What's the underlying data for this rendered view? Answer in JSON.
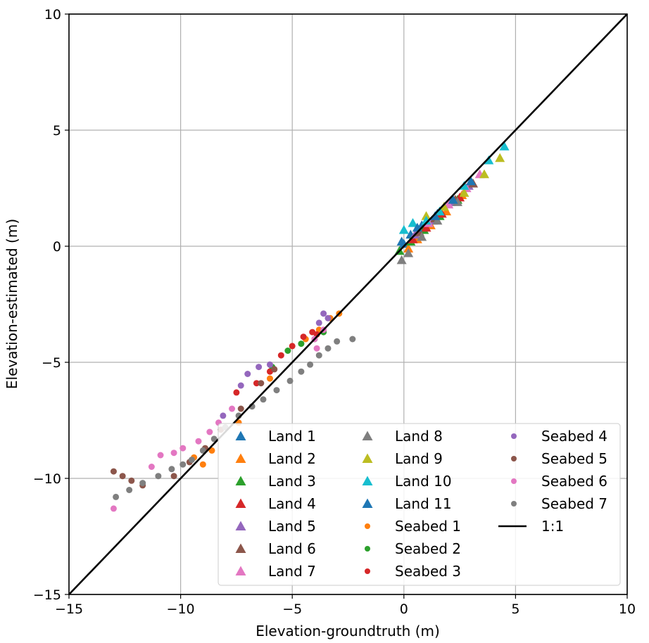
{
  "chart_data": {
    "type": "scatter",
    "title": "",
    "xlabel": "Elevation-groundtruth (m)",
    "ylabel": "Elevation-estimated (m)",
    "xlim": [
      -15,
      10
    ],
    "ylim": [
      -15,
      10
    ],
    "x_ticks": [
      -15,
      -10,
      -5,
      0,
      5,
      10
    ],
    "y_ticks": [
      -15,
      -10,
      -5,
      0,
      5,
      10
    ],
    "x_tick_labels": [
      "−15",
      "−10",
      "−5",
      "0",
      "5",
      "10"
    ],
    "y_tick_labels": [
      "−15",
      "−10",
      "−5",
      "0",
      "5",
      "10"
    ],
    "grid": true,
    "legend_placement": "lower-right",
    "reference_line": {
      "label": "1:1",
      "x": [
        -15,
        10
      ],
      "y": [
        -15,
        10
      ],
      "color": "#000000"
    },
    "series": [
      {
        "name": "Land 1",
        "marker": "triangle",
        "color": "#1f77b4",
        "points": [
          [
            0.0,
            0.1
          ],
          [
            0.3,
            0.5
          ],
          [
            0.8,
            0.9
          ],
          [
            1.5,
            1.4
          ],
          [
            2.2,
            2.0
          ],
          [
            3.0,
            2.7
          ]
        ]
      },
      {
        "name": "Land 2",
        "marker": "triangle",
        "color": "#ff7f0e",
        "points": [
          [
            0.2,
            -0.1
          ],
          [
            0.6,
            0.3
          ],
          [
            1.2,
            0.9
          ],
          [
            1.9,
            1.5
          ],
          [
            2.6,
            2.2
          ]
        ]
      },
      {
        "name": "Land 3",
        "marker": "triangle",
        "color": "#2ca02c",
        "points": [
          [
            -0.2,
            -0.2
          ],
          [
            0.3,
            0.2
          ],
          [
            0.9,
            0.7
          ],
          [
            1.6,
            1.3
          ],
          [
            2.4,
            2.0
          ]
        ]
      },
      {
        "name": "Land 4",
        "marker": "triangle",
        "color": "#d62728",
        "points": [
          [
            0.4,
            0.3
          ],
          [
            1.0,
            0.8
          ],
          [
            1.7,
            1.4
          ],
          [
            2.5,
            2.1
          ]
        ]
      },
      {
        "name": "Land 5",
        "marker": "triangle",
        "color": "#9467bd",
        "points": [
          [
            0.5,
            0.5
          ],
          [
            1.3,
            1.1
          ],
          [
            2.1,
            1.9
          ],
          [
            2.9,
            2.6
          ]
        ]
      },
      {
        "name": "Land 6",
        "marker": "triangle",
        "color": "#8c564b",
        "points": [
          [
            0.7,
            0.6
          ],
          [
            1.4,
            1.2
          ],
          [
            2.3,
            2.0
          ],
          [
            3.1,
            2.7
          ]
        ]
      },
      {
        "name": "Land 7",
        "marker": "triangle",
        "color": "#e377c2",
        "points": [
          [
            1.1,
            1.0
          ],
          [
            2.0,
            1.8
          ],
          [
            2.8,
            2.5
          ],
          [
            3.4,
            3.1
          ]
        ]
      },
      {
        "name": "Land 8",
        "marker": "triangle",
        "color": "#7f7f7f",
        "points": [
          [
            -0.1,
            -0.6
          ],
          [
            0.2,
            -0.3
          ],
          [
            0.8,
            0.4
          ],
          [
            1.5,
            1.1
          ],
          [
            2.4,
            1.9
          ]
        ]
      },
      {
        "name": "Land 9",
        "marker": "triangle",
        "color": "#bcbd22",
        "points": [
          [
            1.0,
            1.3
          ],
          [
            1.8,
            1.7
          ],
          [
            2.7,
            2.3
          ],
          [
            3.6,
            3.1
          ],
          [
            4.3,
            3.8
          ]
        ]
      },
      {
        "name": "Land 10",
        "marker": "triangle",
        "color": "#17becf",
        "points": [
          [
            0.0,
            0.7
          ],
          [
            0.4,
            1.0
          ],
          [
            1.0,
            1.1
          ],
          [
            1.6,
            1.5
          ],
          [
            2.7,
            2.6
          ],
          [
            3.8,
            3.7
          ],
          [
            4.5,
            4.3
          ]
        ]
      },
      {
        "name": "Land 11",
        "marker": "triangle",
        "color": "#1f77b4",
        "points": [
          [
            -0.1,
            0.2
          ],
          [
            0.6,
            0.8
          ],
          [
            1.4,
            1.3
          ],
          [
            2.2,
            2.0
          ],
          [
            3.0,
            2.8
          ]
        ]
      },
      {
        "name": "Seabed 1",
        "marker": "circle",
        "color": "#ff7f0e",
        "points": [
          [
            -9.4,
            -9.1
          ],
          [
            -9.0,
            -9.4
          ],
          [
            -8.6,
            -8.8
          ],
          [
            -7.4,
            -7.6
          ],
          [
            -6.0,
            -5.7
          ],
          [
            -4.4,
            -4.0
          ],
          [
            -3.8,
            -3.6
          ],
          [
            -3.3,
            -3.1
          ],
          [
            -2.9,
            -2.9
          ]
        ]
      },
      {
        "name": "Seabed 2",
        "marker": "circle",
        "color": "#2ca02c",
        "points": [
          [
            -5.9,
            -5.2
          ],
          [
            -5.2,
            -4.5
          ],
          [
            -4.6,
            -4.2
          ],
          [
            -4.0,
            -4.0
          ],
          [
            -3.6,
            -3.7
          ]
        ]
      },
      {
        "name": "Seabed 3",
        "marker": "circle",
        "color": "#d62728",
        "points": [
          [
            -7.5,
            -6.3
          ],
          [
            -6.6,
            -5.9
          ],
          [
            -6.0,
            -5.4
          ],
          [
            -5.5,
            -4.7
          ],
          [
            -5.0,
            -4.3
          ],
          [
            -4.5,
            -3.9
          ],
          [
            -4.1,
            -3.7
          ],
          [
            -3.9,
            -3.8
          ]
        ]
      },
      {
        "name": "Seabed 4",
        "marker": "circle",
        "color": "#9467bd",
        "points": [
          [
            -8.1,
            -7.3
          ],
          [
            -7.3,
            -6.0
          ],
          [
            -7.0,
            -5.5
          ],
          [
            -6.5,
            -5.2
          ],
          [
            -6.0,
            -5.1
          ],
          [
            -3.6,
            -2.9
          ],
          [
            -3.4,
            -3.1
          ],
          [
            -3.8,
            -3.3
          ]
        ]
      },
      {
        "name": "Seabed 5",
        "marker": "circle",
        "color": "#8c564b",
        "points": [
          [
            -13.0,
            -9.7
          ],
          [
            -12.6,
            -9.9
          ],
          [
            -12.2,
            -10.1
          ],
          [
            -11.7,
            -10.3
          ],
          [
            -10.3,
            -9.9
          ],
          [
            -9.6,
            -9.3
          ],
          [
            -8.9,
            -8.7
          ],
          [
            -8.2,
            -7.9
          ],
          [
            -7.3,
            -7.0
          ],
          [
            -6.4,
            -5.9
          ],
          [
            -5.8,
            -5.3
          ]
        ]
      },
      {
        "name": "Seabed 6",
        "marker": "circle",
        "color": "#e377c2",
        "points": [
          [
            -13.0,
            -11.3
          ],
          [
            -11.3,
            -9.5
          ],
          [
            -10.9,
            -9.0
          ],
          [
            -10.3,
            -8.9
          ],
          [
            -9.9,
            -8.7
          ],
          [
            -9.2,
            -8.4
          ],
          [
            -8.7,
            -8.0
          ],
          [
            -8.3,
            -7.6
          ],
          [
            -7.7,
            -7.0
          ],
          [
            -4.0,
            -4.0
          ],
          [
            -3.6,
            -3.6
          ],
          [
            -3.9,
            -4.4
          ]
        ]
      },
      {
        "name": "Seabed 7",
        "marker": "circle",
        "color": "#7f7f7f",
        "points": [
          [
            -12.9,
            -10.8
          ],
          [
            -12.3,
            -10.5
          ],
          [
            -11.7,
            -10.2
          ],
          [
            -11.0,
            -9.9
          ],
          [
            -10.4,
            -9.6
          ],
          [
            -9.9,
            -9.4
          ],
          [
            -9.5,
            -9.2
          ],
          [
            -9.0,
            -8.8
          ],
          [
            -8.5,
            -8.3
          ],
          [
            -8.0,
            -7.8
          ],
          [
            -7.4,
            -7.3
          ],
          [
            -6.8,
            -6.9
          ],
          [
            -6.3,
            -6.6
          ],
          [
            -5.7,
            -6.2
          ],
          [
            -5.1,
            -5.8
          ],
          [
            -4.6,
            -5.4
          ],
          [
            -4.2,
            -5.1
          ],
          [
            -3.8,
            -4.7
          ],
          [
            -3.4,
            -4.4
          ],
          [
            -3.0,
            -4.1
          ],
          [
            -2.3,
            -4.0
          ]
        ]
      }
    ]
  }
}
